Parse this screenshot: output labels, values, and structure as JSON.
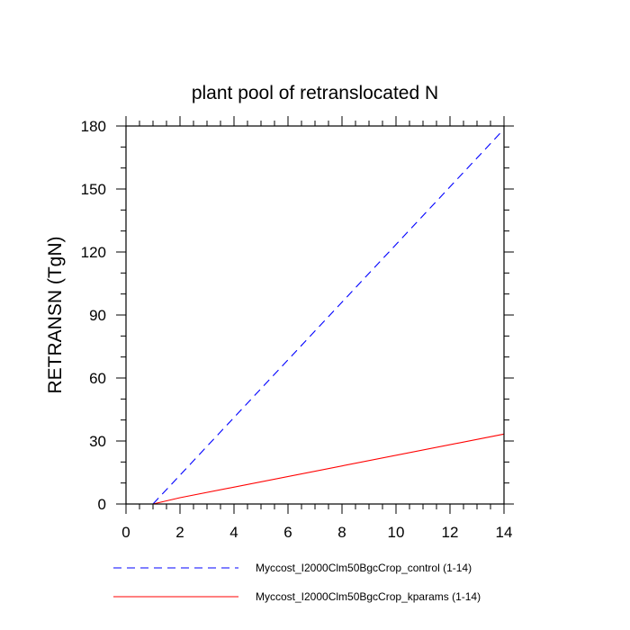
{
  "chart_data": {
    "type": "line",
    "title": "plant pool of retranslocated N",
    "xlabel": "",
    "ylabel": "RETRANSN  (TgN)",
    "xlim": [
      0,
      14
    ],
    "ylim": [
      0,
      180
    ],
    "x_ticks": [
      0,
      2,
      4,
      6,
      8,
      10,
      12,
      14
    ],
    "x_tick_labels": [
      "0",
      "2",
      "4",
      "6",
      "8",
      "10",
      "12",
      "14"
    ],
    "y_ticks": [
      0,
      30,
      60,
      90,
      120,
      150,
      180
    ],
    "y_tick_labels": [
      "0",
      "30",
      "60",
      "90",
      "120",
      "150",
      "180"
    ],
    "x_minor_step": 0.5,
    "y_minor_step": 10,
    "grid": false,
    "legend_position": "bottom",
    "series": [
      {
        "name": "Myccost_I2000Clm50BgcCrop_control (1-14)",
        "color": "#0000ff",
        "style": "dashed",
        "x": [
          1,
          14
        ],
        "y": [
          0,
          178.5
        ]
      },
      {
        "name": "Myccost_I2000Clm50BgcCrop_kparams (1-14)",
        "color": "#ff0000",
        "style": "solid",
        "x": [
          1,
          2,
          14
        ],
        "y": [
          0,
          3,
          33.3
        ]
      }
    ]
  }
}
